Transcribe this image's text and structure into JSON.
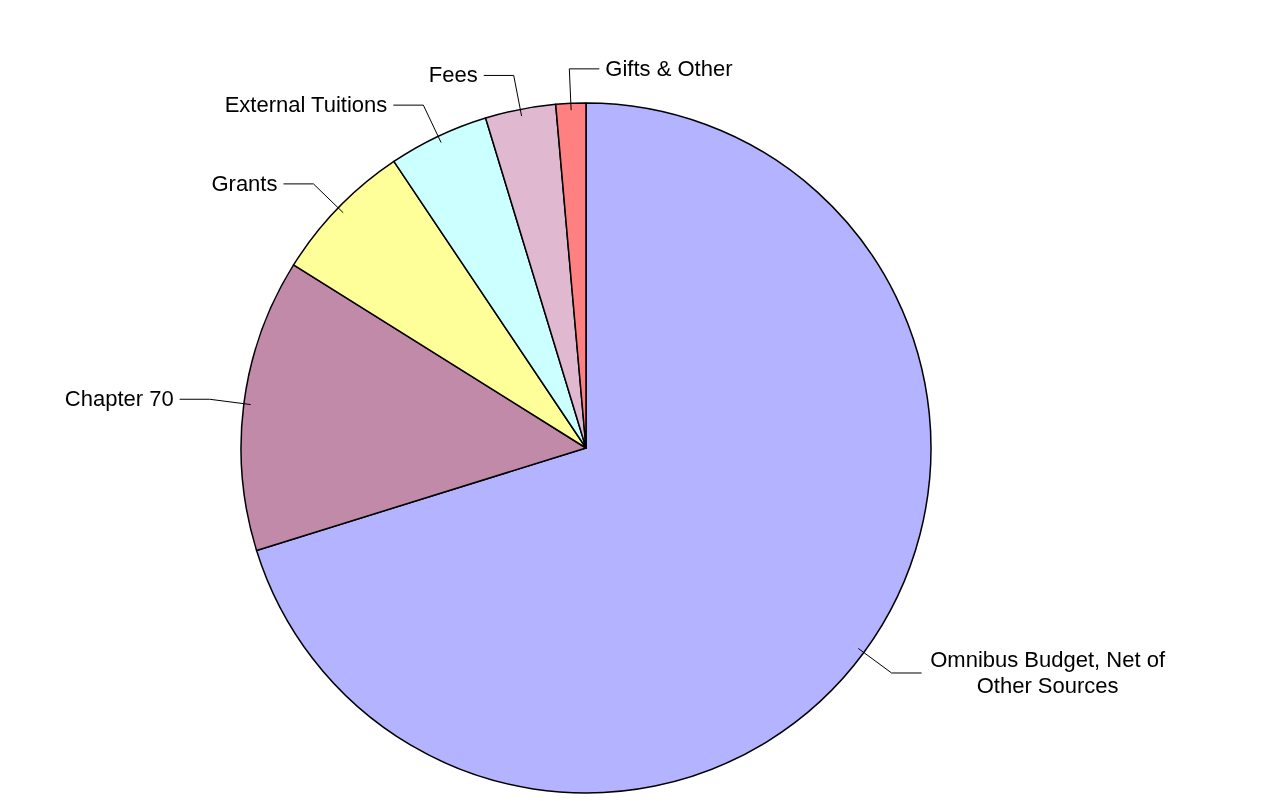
{
  "chart_data": {
    "type": "pie",
    "categories": [
      "Omnibus Budget, Net of Other Sources",
      "Chapter 70",
      "Grants",
      "External Tuitions",
      "Fees",
      "Gifts & Other"
    ],
    "values": [
      70.2,
      13.7,
      6.7,
      4.7,
      3.3,
      1.4
    ],
    "colors": [
      "#b3b3ff",
      "#c08aa8",
      "#ffff99",
      "#ccffff",
      "#e0b8d0",
      "#ff8080"
    ]
  }
}
